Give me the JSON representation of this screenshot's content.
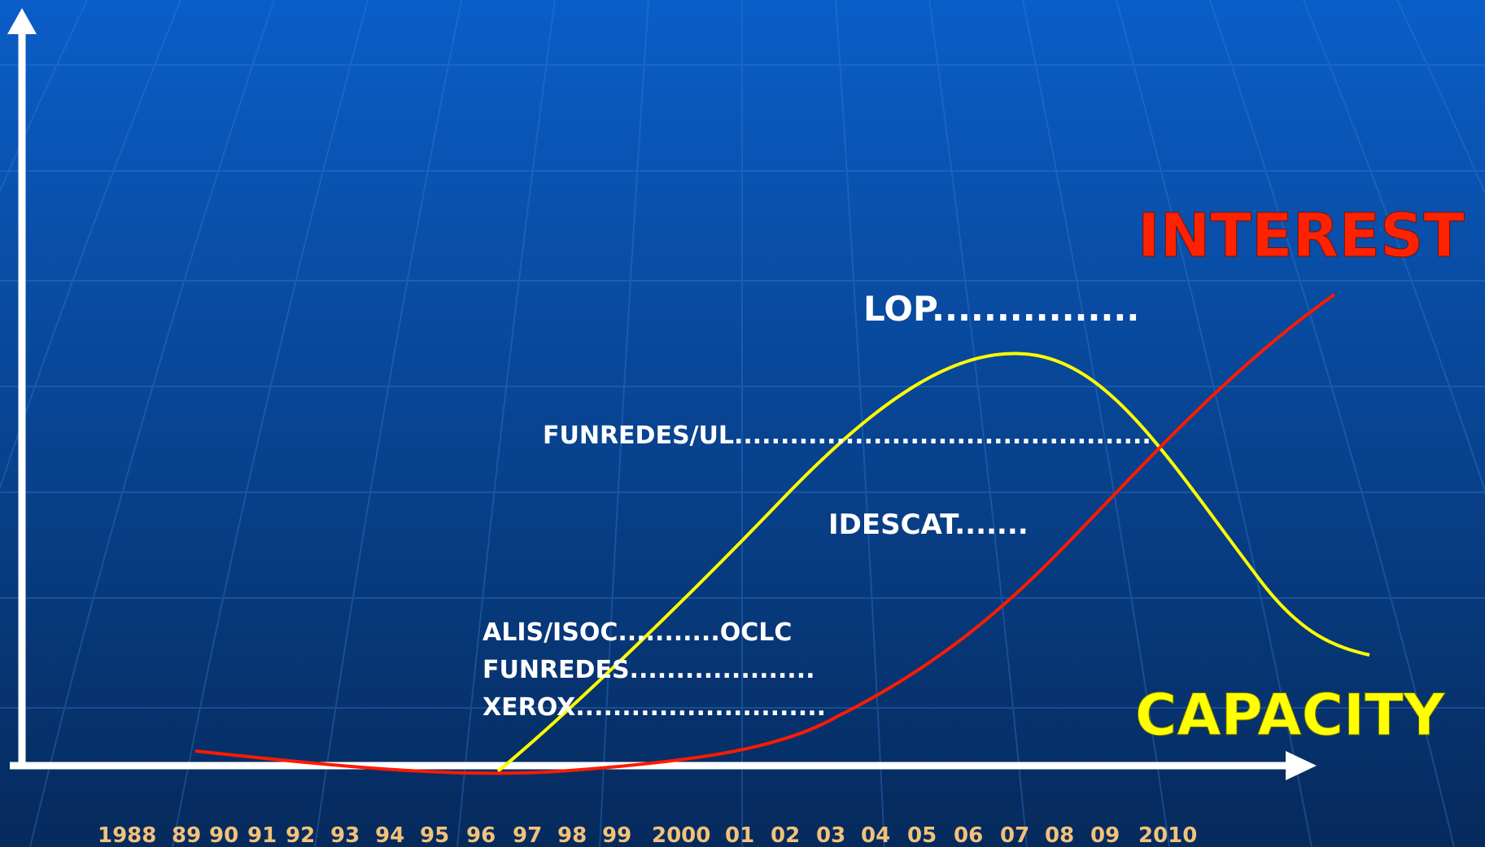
{
  "chart_data": {
    "type": "line",
    "x_tick_labels": [
      "1988",
      "89",
      "90",
      "91",
      "92",
      "93",
      "94",
      "95",
      "96",
      "97",
      "98",
      "99",
      "2000",
      "01",
      "02",
      "03",
      "04",
      "05",
      "06",
      "07",
      "08",
      "09",
      "2010"
    ],
    "series": [
      {
        "name": "INTEREST",
        "color": "#ff2200"
      },
      {
        "name": "CAPACITY",
        "color": "#ffff00"
      }
    ],
    "annotations": [
      "LOP................",
      "FUNREDES/UL.............................................",
      "IDESCAT.......",
      "ALIS/ISOC...........OCLC",
      "FUNREDES....................",
      "XEROX..........................."
    ],
    "grid": false
  },
  "colors": {
    "background_top": "#0a5ec8",
    "background_bottom": "#06285a",
    "axis": "#ffffff",
    "interest": "#ff2200",
    "capacity": "#ffff00",
    "tick_label": "#f2c27a"
  }
}
